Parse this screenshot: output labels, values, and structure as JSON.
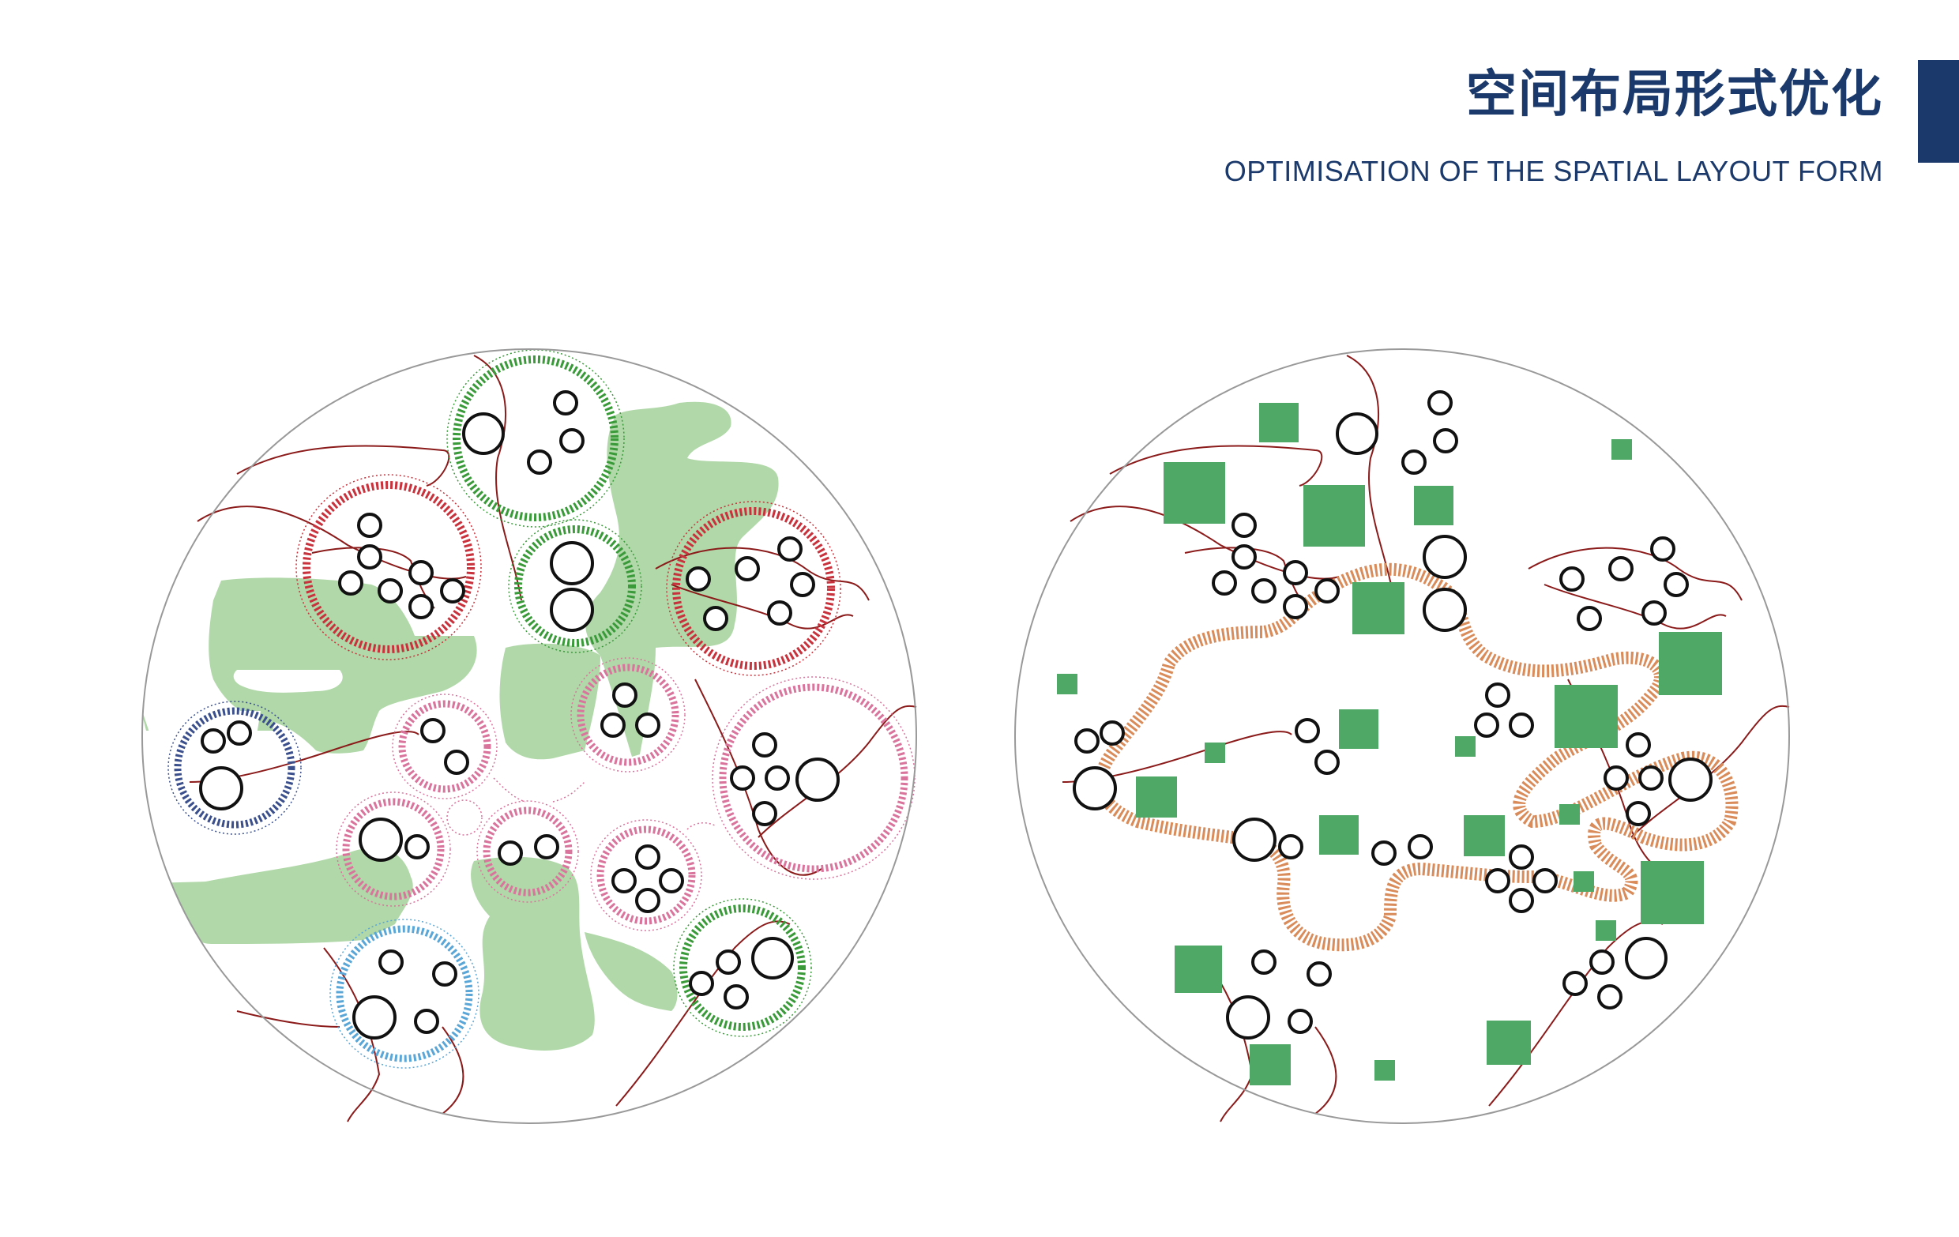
{
  "header": {
    "title_cn": "空间布局形式优化",
    "title_en": "OPTIMISATION OF THE SPATIAL LAYOUT FORM"
  },
  "colors": {
    "title": "#1b3a6b",
    "accent_bar": "#1b3a6b",
    "green_space": "#b0d8a8",
    "green_block": "#4fa866",
    "red_path": "#8b1a1a",
    "cluster_green": "#3a9a3a",
    "cluster_red": "#c8323c",
    "cluster_pink": "#d9749c",
    "cluster_navy": "#3a4f8c",
    "cluster_blue": "#5aa6d6",
    "loop_orange": "#d98c5a",
    "circle_outline": "#999999"
  },
  "icons": {
    "left_diagram": "cluster-layout-diagram",
    "right_diagram": "optimised-layout-diagram"
  }
}
